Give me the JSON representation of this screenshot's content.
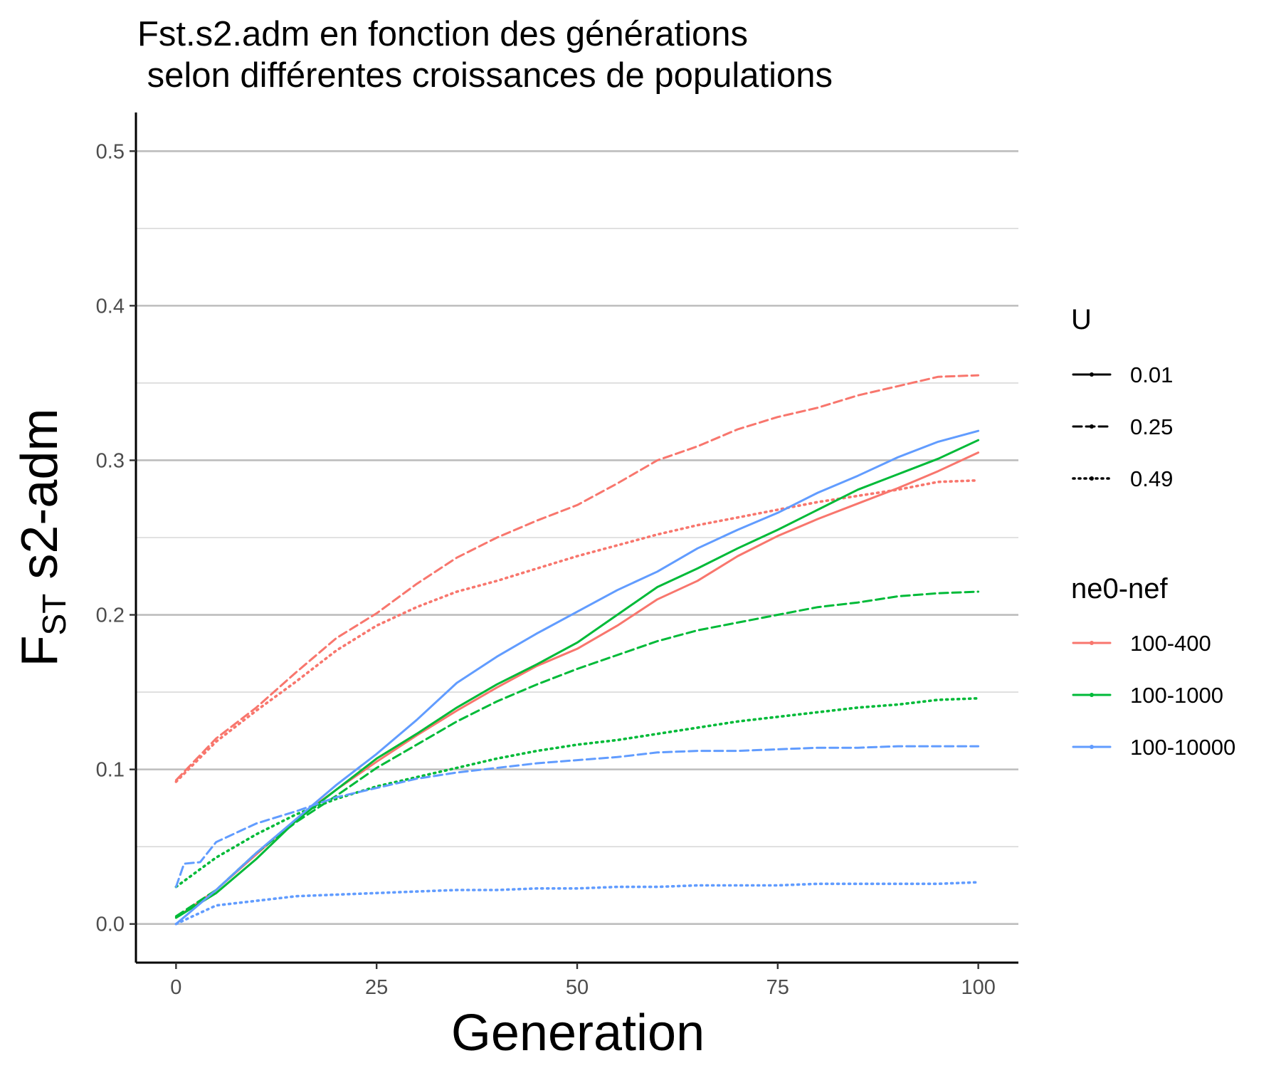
{
  "chart_data": {
    "type": "line",
    "title_line1": "Fst.s2.adm en fonction des générations",
    "title_line2": " selon différentes croissances de populations",
    "xlabel": "Generation",
    "ylabel_main": "F",
    "ylabel_sub": "ST",
    "ylabel_rest": " s2-adm",
    "xlim": [
      -5,
      105
    ],
    "ylim": [
      -0.025,
      0.525
    ],
    "x_ticks": [
      0,
      25,
      50,
      75,
      100
    ],
    "x_tick_labels": [
      "0",
      "25",
      "50",
      "75",
      "100"
    ],
    "y_ticks": [
      0.0,
      0.1,
      0.2,
      0.3,
      0.4,
      0.5
    ],
    "y_tick_labels": [
      "0.0",
      "0.1",
      "0.2",
      "0.3",
      "0.4",
      "0.5"
    ],
    "y_minor_ticks": [
      0.05,
      0.15,
      0.25,
      0.35,
      0.45
    ],
    "grid": "horizontal",
    "legend_linetype": {
      "title": "U",
      "entries": [
        {
          "label": "0.01",
          "dash": "solid"
        },
        {
          "label": "0.25",
          "dash": "dashed"
        },
        {
          "label": "0.49",
          "dash": "dotted"
        }
      ]
    },
    "legend_color": {
      "title": "ne0-nef",
      "entries": [
        {
          "label": "100-400",
          "color": "#F8766D"
        },
        {
          "label": "100-1000",
          "color": "#00BA38"
        },
        {
          "label": "100-10000",
          "color": "#619CFF"
        }
      ]
    },
    "series": [
      {
        "ne": "100-400",
        "U": "0.01",
        "color": "#F8766D",
        "dash": "solid",
        "x": [
          0,
          5,
          10,
          15,
          20,
          25,
          30,
          35,
          40,
          45,
          50,
          55,
          60,
          65,
          70,
          75,
          80,
          85,
          90,
          95,
          100
        ],
        "y": [
          0.004,
          0.022,
          0.045,
          0.068,
          0.087,
          0.105,
          0.122,
          0.138,
          0.153,
          0.167,
          0.178,
          0.193,
          0.21,
          0.222,
          0.238,
          0.251,
          0.262,
          0.272,
          0.282,
          0.293,
          0.305
        ]
      },
      {
        "ne": "100-400",
        "U": "0.25",
        "color": "#F8766D",
        "dash": "dashed",
        "x": [
          0,
          5,
          10,
          15,
          20,
          25,
          30,
          35,
          40,
          45,
          50,
          55,
          60,
          65,
          70,
          75,
          80,
          85,
          90,
          95,
          100
        ],
        "y": [
          0.093,
          0.12,
          0.14,
          0.163,
          0.185,
          0.201,
          0.22,
          0.237,
          0.25,
          0.261,
          0.271,
          0.285,
          0.3,
          0.309,
          0.32,
          0.328,
          0.334,
          0.342,
          0.348,
          0.354,
          0.355
        ]
      },
      {
        "ne": "100-400",
        "U": "0.49",
        "color": "#F8766D",
        "dash": "dotted",
        "x": [
          0,
          5,
          10,
          15,
          20,
          25,
          30,
          35,
          40,
          45,
          50,
          55,
          60,
          65,
          70,
          75,
          80,
          85,
          90,
          95,
          100
        ],
        "y": [
          0.092,
          0.118,
          0.138,
          0.157,
          0.177,
          0.193,
          0.205,
          0.215,
          0.222,
          0.23,
          0.238,
          0.245,
          0.252,
          0.258,
          0.263,
          0.268,
          0.273,
          0.277,
          0.281,
          0.286,
          0.287
        ]
      },
      {
        "ne": "100-1000",
        "U": "0.01",
        "color": "#00BA38",
        "dash": "solid",
        "x": [
          0,
          5,
          10,
          15,
          20,
          25,
          30,
          35,
          40,
          45,
          50,
          55,
          60,
          65,
          70,
          75,
          80,
          85,
          90,
          95,
          100
        ],
        "y": [
          0.004,
          0.02,
          0.042,
          0.067,
          0.087,
          0.107,
          0.123,
          0.14,
          0.155,
          0.168,
          0.182,
          0.2,
          0.218,
          0.23,
          0.243,
          0.255,
          0.268,
          0.281,
          0.291,
          0.301,
          0.313
        ]
      },
      {
        "ne": "100-1000",
        "U": "0.25",
        "color": "#00BA38",
        "dash": "dashed",
        "x": [
          0,
          5,
          10,
          15,
          20,
          25,
          30,
          35,
          40,
          45,
          50,
          55,
          60,
          65,
          70,
          75,
          80,
          85,
          90,
          95,
          100
        ],
        "y": [
          0.005,
          0.022,
          0.046,
          0.066,
          0.083,
          0.101,
          0.116,
          0.131,
          0.144,
          0.155,
          0.165,
          0.174,
          0.183,
          0.19,
          0.195,
          0.2,
          0.205,
          0.208,
          0.212,
          0.214,
          0.215
        ]
      },
      {
        "ne": "100-1000",
        "U": "0.49",
        "color": "#00BA38",
        "dash": "dotted",
        "x": [
          0,
          5,
          10,
          15,
          20,
          25,
          30,
          35,
          40,
          45,
          50,
          55,
          60,
          65,
          70,
          75,
          80,
          85,
          90,
          95,
          100
        ],
        "y": [
          0.024,
          0.043,
          0.058,
          0.071,
          0.081,
          0.089,
          0.095,
          0.101,
          0.107,
          0.112,
          0.116,
          0.119,
          0.123,
          0.127,
          0.131,
          0.134,
          0.137,
          0.14,
          0.142,
          0.145,
          0.146
        ]
      },
      {
        "ne": "100-10000",
        "U": "0.01",
        "color": "#619CFF",
        "dash": "solid",
        "x": [
          0,
          5,
          10,
          15,
          20,
          25,
          30,
          35,
          40,
          45,
          50,
          55,
          60,
          65,
          70,
          75,
          80,
          85,
          90,
          95,
          100
        ],
        "y": [
          0.0,
          0.022,
          0.046,
          0.068,
          0.09,
          0.11,
          0.132,
          0.156,
          0.173,
          0.188,
          0.202,
          0.216,
          0.228,
          0.243,
          0.255,
          0.266,
          0.279,
          0.29,
          0.302,
          0.312,
          0.319
        ]
      },
      {
        "ne": "100-10000",
        "U": "0.25",
        "color": "#619CFF",
        "dash": "dashed",
        "x": [
          0,
          1,
          3,
          5,
          10,
          15,
          20,
          25,
          30,
          35,
          40,
          45,
          50,
          55,
          60,
          65,
          70,
          75,
          80,
          85,
          90,
          95,
          100
        ],
        "y": [
          0.024,
          0.039,
          0.04,
          0.053,
          0.065,
          0.073,
          0.082,
          0.088,
          0.094,
          0.098,
          0.101,
          0.104,
          0.106,
          0.108,
          0.111,
          0.112,
          0.112,
          0.113,
          0.114,
          0.114,
          0.115,
          0.115,
          0.115
        ]
      },
      {
        "ne": "100-10000",
        "U": "0.49",
        "color": "#619CFF",
        "dash": "dotted",
        "x": [
          0,
          5,
          10,
          15,
          20,
          25,
          30,
          35,
          40,
          45,
          50,
          55,
          60,
          65,
          70,
          75,
          80,
          85,
          90,
          95,
          100
        ],
        "y": [
          0.0,
          0.012,
          0.015,
          0.018,
          0.019,
          0.02,
          0.021,
          0.022,
          0.022,
          0.023,
          0.023,
          0.024,
          0.024,
          0.025,
          0.025,
          0.025,
          0.026,
          0.026,
          0.026,
          0.026,
          0.027
        ]
      }
    ]
  }
}
